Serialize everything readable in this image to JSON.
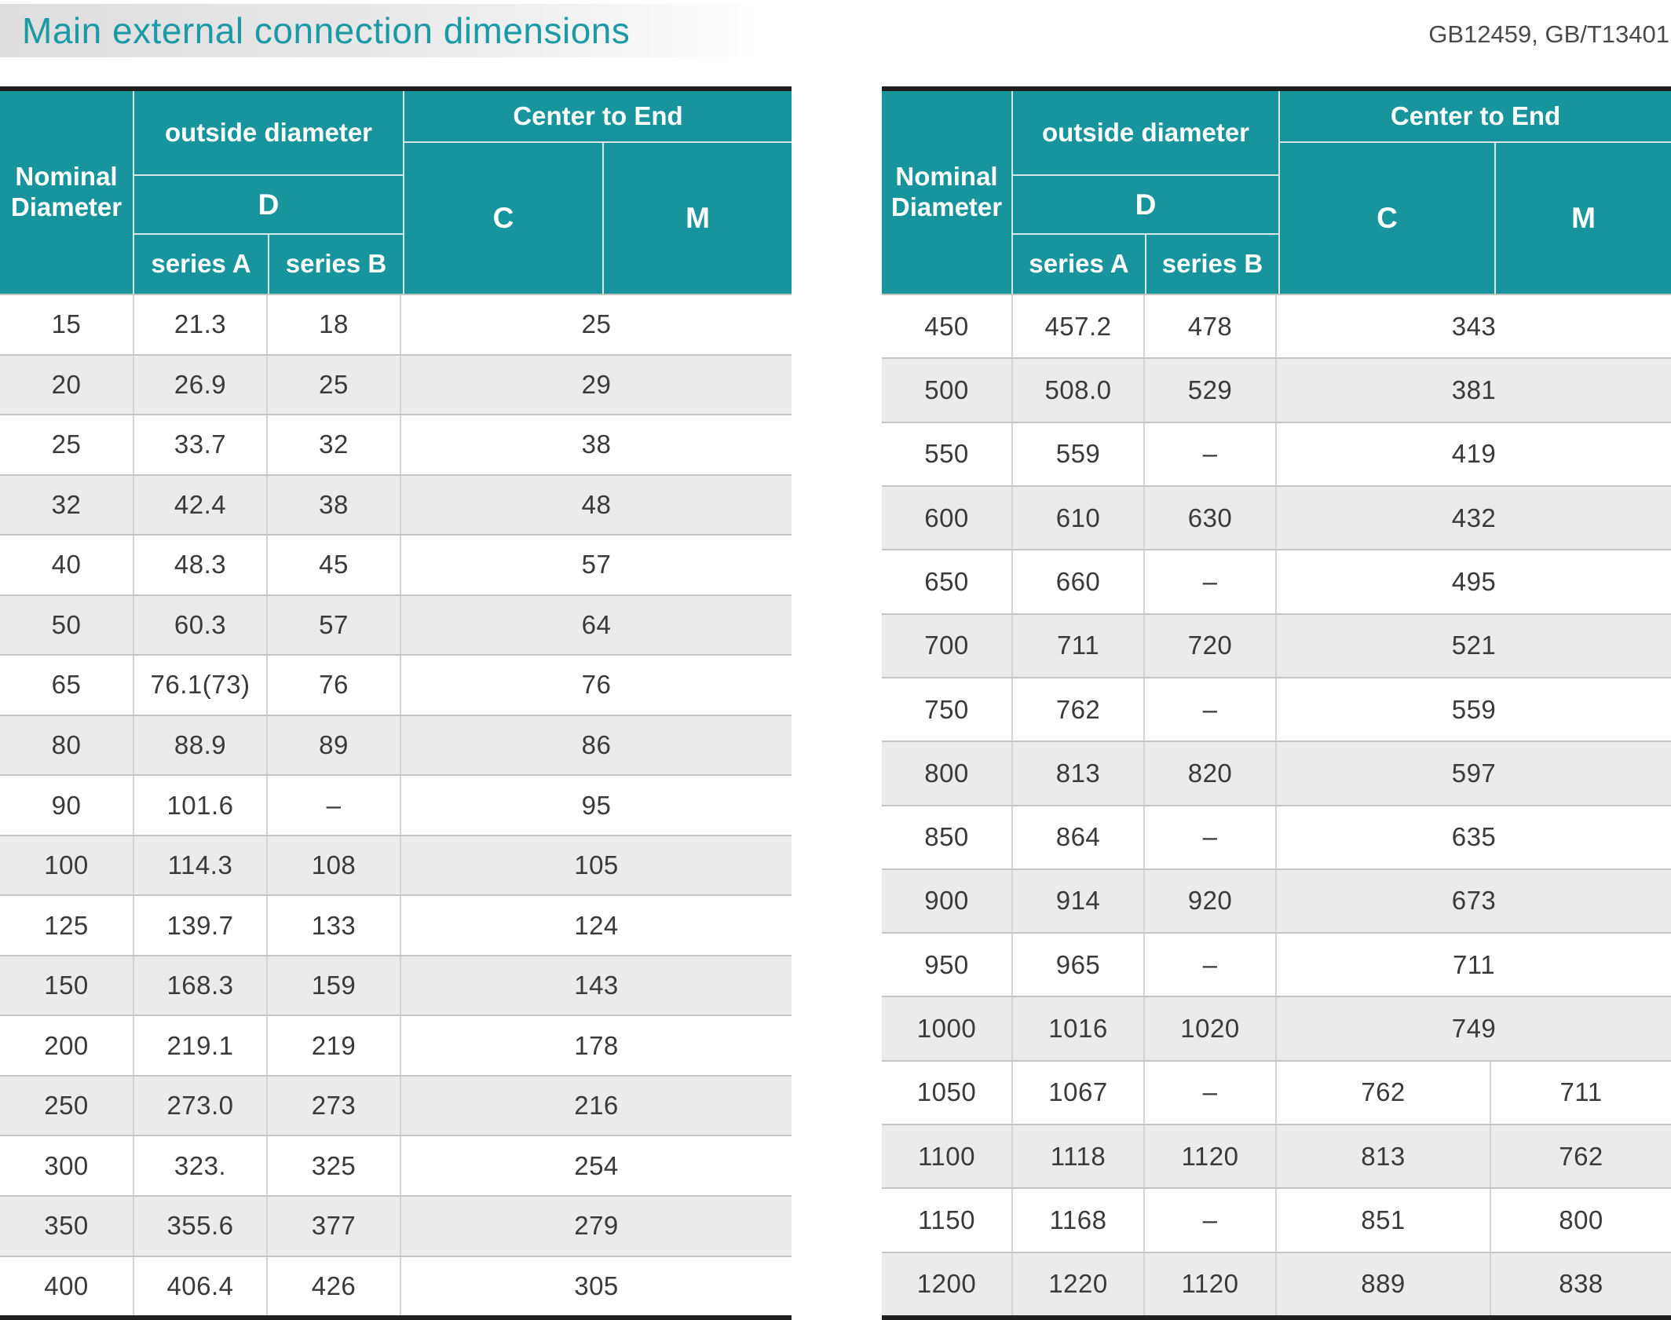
{
  "page": {
    "title": "Main external connection dimensions",
    "standards": "GB12459, GB/T13401"
  },
  "colors": {
    "header_teal": "#17949c",
    "title_teal": "#1b9aa5",
    "row_alt_gray": "#ebebeb",
    "border_dark": "#1f1f1f",
    "text_dark": "#3a3a3a"
  },
  "header_labels": {
    "nominal_diameter": "Nominal Diameter",
    "outside_diameter": "outside diameter",
    "d": "D",
    "series_a": "series A",
    "series_b": "series B",
    "center_to_end": "Center to End",
    "c": "C",
    "m": "M"
  },
  "tables": [
    {
      "name": "dimensions-dn15-400",
      "rows": [
        {
          "nd": "15",
          "sa": "21.3",
          "sb": "18",
          "cm": "25"
        },
        {
          "nd": "20",
          "sa": "26.9",
          "sb": "25",
          "cm": "29"
        },
        {
          "nd": "25",
          "sa": "33.7",
          "sb": "32",
          "cm": "38"
        },
        {
          "nd": "32",
          "sa": "42.4",
          "sb": "38",
          "cm": "48"
        },
        {
          "nd": "40",
          "sa": "48.3",
          "sb": "45",
          "cm": "57"
        },
        {
          "nd": "50",
          "sa": "60.3",
          "sb": "57",
          "cm": "64"
        },
        {
          "nd": "65",
          "sa": "76.1(73)",
          "sb": "76",
          "cm": "76"
        },
        {
          "nd": "80",
          "sa": "88.9",
          "sb": "89",
          "cm": "86"
        },
        {
          "nd": "90",
          "sa": "101.6",
          "sb": "–",
          "cm": "95"
        },
        {
          "nd": "100",
          "sa": "114.3",
          "sb": "108",
          "cm": "105"
        },
        {
          "nd": "125",
          "sa": "139.7",
          "sb": "133",
          "cm": "124"
        },
        {
          "nd": "150",
          "sa": "168.3",
          "sb": "159",
          "cm": "143"
        },
        {
          "nd": "200",
          "sa": "219.1",
          "sb": "219",
          "cm": "178"
        },
        {
          "nd": "250",
          "sa": "273.0",
          "sb": "273",
          "cm": "216"
        },
        {
          "nd": "300",
          "sa": "323.",
          "sb": "325",
          "cm": "254"
        },
        {
          "nd": "350",
          "sa": "355.6",
          "sb": "377",
          "cm": "279"
        },
        {
          "nd": "400",
          "sa": "406.4",
          "sb": "426",
          "cm": "305"
        }
      ]
    },
    {
      "name": "dimensions-dn450-1200",
      "rows": [
        {
          "nd": "450",
          "sa": "457.2",
          "sb": "478",
          "cm": "343"
        },
        {
          "nd": "500",
          "sa": "508.0",
          "sb": "529",
          "cm": "381"
        },
        {
          "nd": "550",
          "sa": "559",
          "sb": "–",
          "cm": "419"
        },
        {
          "nd": "600",
          "sa": "610",
          "sb": "630",
          "cm": "432"
        },
        {
          "nd": "650",
          "sa": "660",
          "sb": "–",
          "cm": "495"
        },
        {
          "nd": "700",
          "sa": "711",
          "sb": "720",
          "cm": "521"
        },
        {
          "nd": "750",
          "sa": "762",
          "sb": "–",
          "cm": "559"
        },
        {
          "nd": "800",
          "sa": "813",
          "sb": "820",
          "cm": "597"
        },
        {
          "nd": "850",
          "sa": "864",
          "sb": "–",
          "cm": "635"
        },
        {
          "nd": "900",
          "sa": "914",
          "sb": "920",
          "cm": "673"
        },
        {
          "nd": "950",
          "sa": "965",
          "sb": "–",
          "cm": "711"
        },
        {
          "nd": "1000",
          "sa": "1016",
          "sb": "1020",
          "cm": "749"
        },
        {
          "nd": "1050",
          "sa": "1067",
          "sb": "–",
          "c": "762",
          "m": "711"
        },
        {
          "nd": "1100",
          "sa": "1118",
          "sb": "1120",
          "c": "813",
          "m": "762"
        },
        {
          "nd": "1150",
          "sa": "1168",
          "sb": "–",
          "c": "851",
          "m": "800"
        },
        {
          "nd": "1200",
          "sa": "1220",
          "sb": "1120",
          "c": "889",
          "m": "838"
        }
      ]
    }
  ]
}
